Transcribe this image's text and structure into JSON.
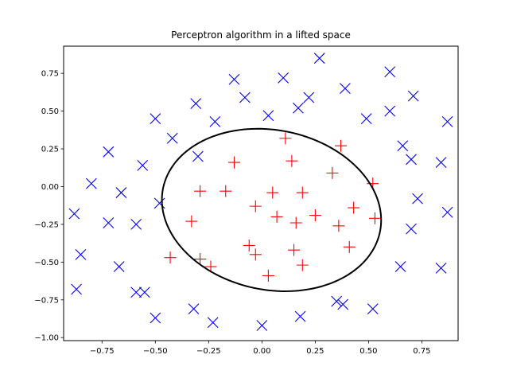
{
  "chart_data": {
    "type": "scatter",
    "title": "Perceptron algorithm in a lifted space",
    "xlabel": "",
    "ylabel": "",
    "xlim": [
      -0.93,
      0.92
    ],
    "ylim": [
      -1.02,
      0.93
    ],
    "xticks": [
      -0.75,
      -0.5,
      -0.25,
      0.0,
      0.25,
      0.5,
      0.75
    ],
    "xtick_labels": [
      "−0.75",
      "−0.50",
      "−0.25",
      "0.00",
      "0.25",
      "0.50",
      "0.75"
    ],
    "yticks": [
      -1.0,
      -0.75,
      -0.5,
      -0.25,
      0.0,
      0.25,
      0.5,
      0.75
    ],
    "ytick_labels": [
      "−1.00",
      "−0.75",
      "−0.50",
      "−0.25",
      "0.00",
      "0.25",
      "0.50",
      "0.75"
    ],
    "grid": false,
    "series": [
      {
        "marker": "x",
        "color": "#0000ff",
        "points": [
          [
            0.27,
            0.85
          ],
          [
            -0.13,
            0.71
          ],
          [
            0.1,
            0.72
          ],
          [
            0.6,
            0.76
          ],
          [
            -0.31,
            0.55
          ],
          [
            -0.08,
            0.59
          ],
          [
            0.17,
            0.52
          ],
          [
            0.22,
            0.59
          ],
          [
            0.39,
            0.65
          ],
          [
            0.71,
            0.6
          ],
          [
            -0.5,
            0.45
          ],
          [
            -0.22,
            0.43
          ],
          [
            0.03,
            0.47
          ],
          [
            0.49,
            0.45
          ],
          [
            0.6,
            0.5
          ],
          [
            0.87,
            0.43
          ],
          [
            -0.42,
            0.32
          ],
          [
            -0.72,
            0.23
          ],
          [
            -0.56,
            0.14
          ],
          [
            -0.3,
            0.2
          ],
          [
            0.66,
            0.27
          ],
          [
            0.7,
            0.18
          ],
          [
            0.84,
            0.16
          ],
          [
            -0.8,
            0.02
          ],
          [
            -0.66,
            -0.04
          ],
          [
            -0.48,
            -0.11
          ],
          [
            0.73,
            -0.08
          ],
          [
            -0.88,
            -0.18
          ],
          [
            -0.72,
            -0.24
          ],
          [
            -0.59,
            -0.25
          ],
          [
            0.7,
            -0.28
          ],
          [
            0.87,
            -0.17
          ],
          [
            -0.85,
            -0.45
          ],
          [
            -0.67,
            -0.53
          ],
          [
            0.65,
            -0.53
          ],
          [
            0.84,
            -0.54
          ],
          [
            -0.87,
            -0.68
          ],
          [
            -0.59,
            -0.7
          ],
          [
            -0.55,
            -0.7
          ],
          [
            0.35,
            -0.76
          ],
          [
            0.38,
            -0.78
          ],
          [
            -0.32,
            -0.81
          ],
          [
            -0.5,
            -0.87
          ],
          [
            0.18,
            -0.86
          ],
          [
            0.52,
            -0.81
          ],
          [
            -0.23,
            -0.9
          ],
          [
            0.0,
            -0.92
          ]
        ]
      },
      {
        "marker": "+",
        "color": "#ff0000",
        "points": [
          [
            0.11,
            0.32
          ],
          [
            0.37,
            0.27
          ],
          [
            -0.13,
            0.16
          ],
          [
            0.14,
            0.17
          ],
          [
            0.33,
            0.09
          ],
          [
            -0.29,
            -0.03
          ],
          [
            -0.17,
            -0.03
          ],
          [
            0.05,
            -0.04
          ],
          [
            0.19,
            -0.04
          ],
          [
            0.52,
            0.02
          ],
          [
            -0.03,
            -0.13
          ],
          [
            0.07,
            -0.2
          ],
          [
            0.16,
            -0.24
          ],
          [
            0.25,
            -0.19
          ],
          [
            0.43,
            -0.14
          ],
          [
            0.53,
            -0.21
          ],
          [
            -0.33,
            -0.23
          ],
          [
            0.36,
            -0.26
          ],
          [
            -0.06,
            -0.39
          ],
          [
            -0.43,
            -0.47
          ],
          [
            -0.29,
            -0.48
          ],
          [
            -0.24,
            -0.53
          ],
          [
            -0.03,
            -0.45
          ],
          [
            0.15,
            -0.42
          ],
          [
            0.19,
            -0.52
          ],
          [
            0.41,
            -0.4
          ],
          [
            0.03,
            -0.59
          ]
        ]
      }
    ],
    "boundary": {
      "shape": "ellipse",
      "color": "#000000",
      "center": [
        0.045,
        -0.155
      ],
      "semi_axes": [
        0.49,
        0.56
      ],
      "rotation_deg": 35
    }
  }
}
